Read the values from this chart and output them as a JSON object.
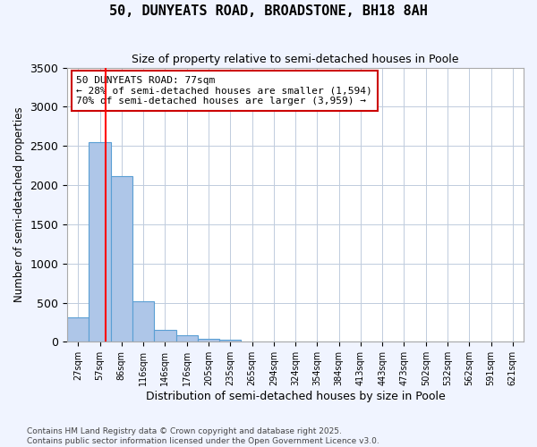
{
  "title": "50, DUNYEATS ROAD, BROADSTONE, BH18 8AH",
  "subtitle": "Size of property relative to semi-detached houses in Poole",
  "xlabel": "Distribution of semi-detached houses by size in Poole",
  "ylabel": "Number of semi-detached properties",
  "bins": [
    "27sqm",
    "57sqm",
    "86sqm",
    "116sqm",
    "146sqm",
    "176sqm",
    "205sqm",
    "235sqm",
    "265sqm",
    "294sqm",
    "324sqm",
    "354sqm",
    "384sqm",
    "413sqm",
    "443sqm",
    "473sqm",
    "502sqm",
    "532sqm",
    "562sqm",
    "591sqm",
    "621sqm"
  ],
  "values": [
    310,
    2550,
    2110,
    520,
    150,
    80,
    40,
    30,
    0,
    0,
    0,
    0,
    0,
    0,
    0,
    0,
    0,
    0,
    0,
    0,
    0
  ],
  "bar_color": "#aec6e8",
  "bar_edgecolor": "#5a9fd4",
  "red_line_x": 1.28,
  "property_sqm": 77,
  "annotation_text": "50 DUNYEATS ROAD: 77sqm\n← 28% of semi-detached houses are smaller (1,594)\n70% of semi-detached houses are larger (3,959) →",
  "annotation_box_color": "#ffffff",
  "annotation_box_edgecolor": "#cc0000",
  "ylim": [
    0,
    3500
  ],
  "yticks": [
    0,
    500,
    1000,
    1500,
    2000,
    2500,
    3000,
    3500
  ],
  "footer": "Contains HM Land Registry data © Crown copyright and database right 2025.\nContains public sector information licensed under the Open Government Licence v3.0.",
  "background_color": "#f0f4ff",
  "plot_background": "#ffffff",
  "grid_color": "#c0ccdd"
}
